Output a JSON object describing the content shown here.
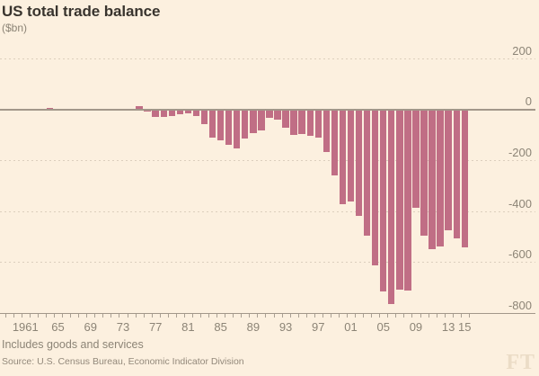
{
  "header": {
    "title": "US total trade balance",
    "subtitle": "($bn)"
  },
  "footer": {
    "note": "Includes goods and services",
    "source": "Source: U.S. Census Bureau, Economic Indicator Division",
    "brand": "FT"
  },
  "colors": {
    "background": "#fcf0df",
    "bar": "#c06e85",
    "axis_line": "#a2978a",
    "gridline": "#dccfbd",
    "label_text": "#8c8476",
    "title_text": "#39342e",
    "brand_text": "#ebdcc6"
  },
  "chart_data": {
    "type": "bar",
    "title": "US total trade balance",
    "ylabel": "($bn)",
    "xlabel": "",
    "ylim": [
      -800,
      200
    ],
    "grid": "horizontal-dashed, solid at 0 and -800",
    "legend": "none",
    "yticks": [
      200,
      0,
      -200,
      -400,
      -600,
      -800
    ],
    "ytick_labels": [
      "200",
      "0",
      "-200",
      "-400",
      "-600",
      "-800"
    ],
    "xticks": [
      {
        "label": "1961",
        "year": 1961
      },
      {
        "label": "65",
        "year": 1965
      },
      {
        "label": "69",
        "year": 1969
      },
      {
        "label": "73",
        "year": 1973
      },
      {
        "label": "77",
        "year": 1977
      },
      {
        "label": "81",
        "year": 1981
      },
      {
        "label": "85",
        "year": 1985
      },
      {
        "label": "89",
        "year": 1989
      },
      {
        "label": "93",
        "year": 1993
      },
      {
        "label": "97",
        "year": 1997
      },
      {
        "label": "01",
        "year": 2001
      },
      {
        "label": "05",
        "year": 2005
      },
      {
        "label": "09",
        "year": 2009
      },
      {
        "label": "13",
        "year": 2013
      },
      {
        "label": "15",
        "year": 2015
      }
    ],
    "years": [
      1961,
      1962,
      1963,
      1964,
      1965,
      1966,
      1967,
      1968,
      1969,
      1970,
      1971,
      1972,
      1973,
      1974,
      1975,
      1976,
      1977,
      1978,
      1979,
      1980,
      1981,
      1982,
      1983,
      1984,
      1985,
      1986,
      1987,
      1988,
      1989,
      1990,
      1991,
      1992,
      1993,
      1994,
      1995,
      1996,
      1997,
      1998,
      1999,
      2000,
      2001,
      2002,
      2003,
      2004,
      2005,
      2006,
      2007,
      2008,
      2009,
      2010,
      2011,
      2012,
      2013,
      2014,
      2015
    ],
    "values": [
      4.2,
      3.4,
      4.2,
      6.0,
      4.7,
      2.3,
      2.6,
      0.2,
      0.1,
      2.3,
      -1.3,
      -5.4,
      1.9,
      -4.3,
      12.4,
      -6.1,
      -27.2,
      -29.8,
      -24.6,
      -19.4,
      -16.2,
      -24.2,
      -57.8,
      -109.1,
      -121.9,
      -138.5,
      -151.7,
      -114.6,
      -93.1,
      -80.9,
      -31.1,
      -39.2,
      -70.3,
      -98.5,
      -96.4,
      -104.1,
      -108.3,
      -166.1,
      -258.6,
      -372.5,
      -361.5,
      -418.0,
      -493.9,
      -609.9,
      -714.2,
      -761.7,
      -705.4,
      -708.7,
      -383.7,
      -495.0,
      -548.6,
      -536.8,
      -472.0,
      -505.0,
      -540.0
    ]
  }
}
